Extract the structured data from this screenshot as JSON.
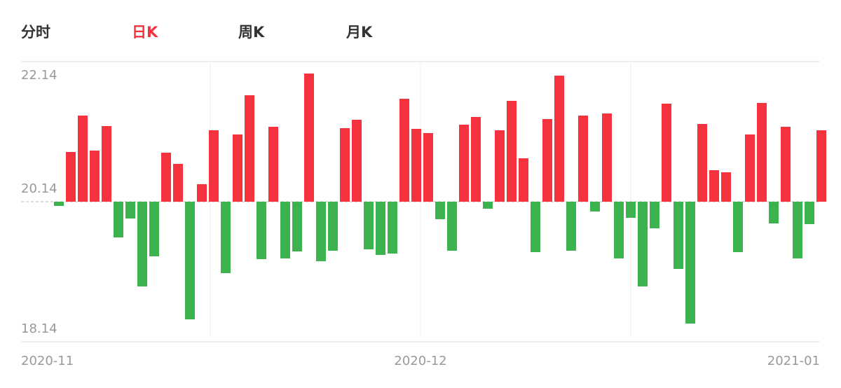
{
  "tabs": [
    "分时",
    "日K",
    "周K",
    "月K"
  ],
  "active_tab": 1,
  "chart_data": {
    "type": "bar",
    "baseline": 20.14,
    "up_color": "#f5333f",
    "down_color": "#3cb34e",
    "values": [
      20.08,
      20.85,
      21.37,
      20.87,
      21.22,
      19.63,
      19.9,
      18.93,
      19.36,
      20.84,
      20.68,
      18.46,
      20.39,
      21.16,
      19.12,
      21.1,
      21.66,
      19.32,
      21.21,
      19.33,
      19.43,
      21.97,
      19.29,
      19.44,
      21.19,
      21.31,
      19.46,
      19.38,
      19.4,
      21.61,
      21.18,
      21.12,
      19.89,
      19.44,
      21.24,
      21.35,
      20.04,
      21.16,
      21.58,
      20.76,
      19.42,
      21.32,
      21.94,
      19.44,
      21.37,
      20.0,
      21.4,
      19.33,
      19.91,
      18.93,
      19.76,
      21.54,
      19.18,
      18.4,
      21.25,
      20.59,
      20.56,
      19.42,
      21.1,
      21.55,
      19.83,
      21.21,
      19.33,
      19.82,
      21.16
    ],
    "x_labels": [
      "2020-11",
      "2020-12",
      "2021-01"
    ],
    "ylim": [
      18.14,
      22.14
    ],
    "yticks": [
      18.14,
      20.14,
      22.14
    ]
  }
}
